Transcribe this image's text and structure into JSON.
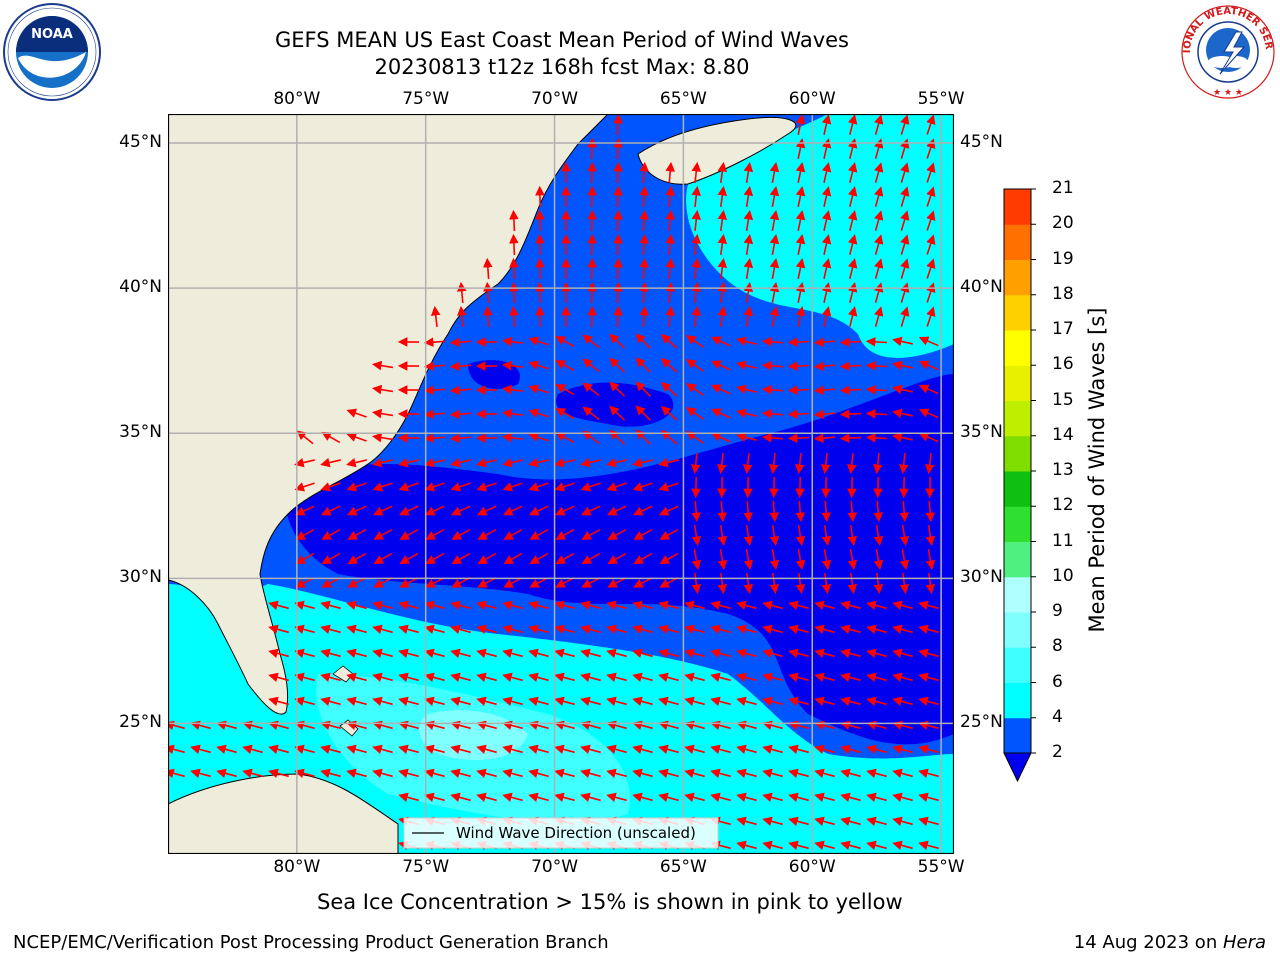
{
  "header": {
    "title_line1": "GEFS MEAN US East Coast Mean Period of Wind Waves",
    "title_line2": "20230813 t12z 168h fcst   Max: 8.80"
  },
  "logos": {
    "left": {
      "name": "noaa-logo",
      "text": "NOAA",
      "ring_text": "NATIONAL OCEANIC AND ATMOSPHERIC ADMINISTRATION · U.S. DEPARTMENT OF COMMERCE"
    },
    "right": {
      "name": "nws-logo",
      "ring_text": "NATIONAL WEATHER SERVICE"
    }
  },
  "map": {
    "lon_labels": [
      "80°W",
      "75°W",
      "70°W",
      "65°W",
      "60°W",
      "55°W"
    ],
    "lat_labels": [
      "45°N",
      "40°N",
      "35°N",
      "30°N",
      "25°N"
    ],
    "lon_values": [
      -80,
      -75,
      -70,
      -65,
      -60,
      -55
    ],
    "lat_values": [
      45,
      40,
      35,
      30,
      25
    ],
    "extent": {
      "lon_min": -85,
      "lon_max": -54.5,
      "lat_min": 20.5,
      "lat_max": 46
    },
    "legend_text": "Wind Wave Direction (unscaled)",
    "arrow_color": "#ff0000",
    "land_color": "#eeeddc",
    "grid_color": "#b0b0b0"
  },
  "colorbar": {
    "label": "Mean Period of Wind Waves [s]",
    "ticks": [
      "2",
      "4",
      "6",
      "8",
      "9",
      "10",
      "11",
      "12",
      "13",
      "14",
      "15",
      "16",
      "17",
      "18",
      "19",
      "20",
      "21"
    ],
    "colors": [
      "#0055ff",
      "#00ffff",
      "#40ffff",
      "#80ffff",
      "#b0ffff",
      "#50f080",
      "#30e030",
      "#10c010",
      "#80dd00",
      "#c0ee00",
      "#e8f000",
      "#ffff00",
      "#ffd000",
      "#ffa000",
      "#ff7000",
      "#ff3c00",
      "#ff0000"
    ],
    "under_color": "#0000ee"
  },
  "footer": {
    "note": "Sea Ice Concentration > 15% is shown in pink to yellow",
    "credit": "NCEP/EMC/Verification Post Processing Product Generation Branch",
    "date_prefix": "14 Aug 2023 on ",
    "machine": "Hera"
  }
}
